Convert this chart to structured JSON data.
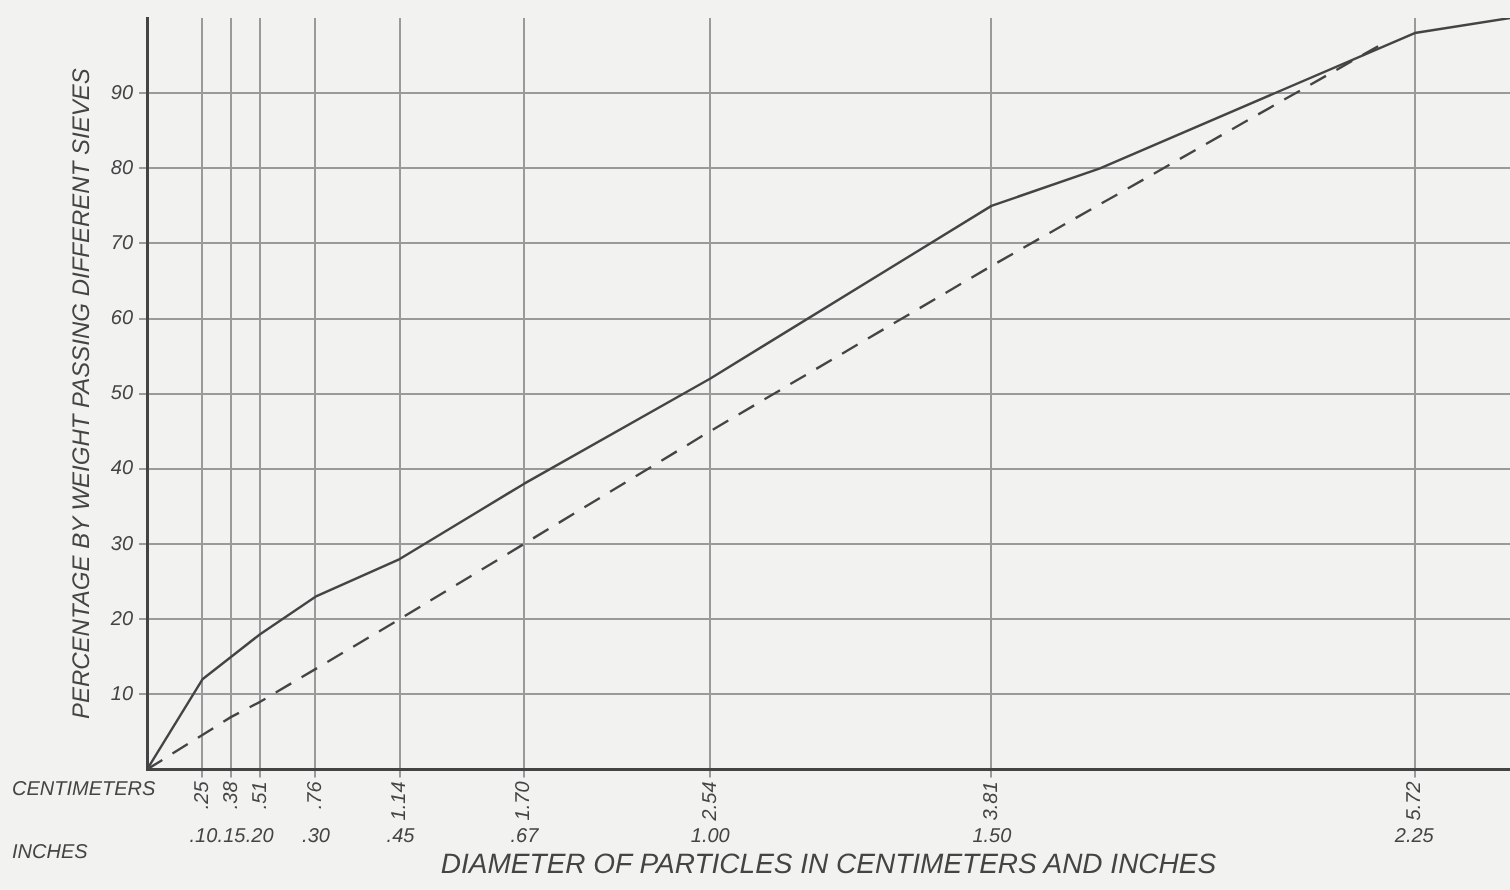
{
  "chart_data": {
    "type": "line",
    "ylabel": "PERCENTAGE BY WEIGHT PASSING DIFFERENT SIEVES",
    "xlabel": "DIAMETER OF PARTICLES IN CENTIMETERS AND INCHES",
    "annotations": [
      "CENTIMETERS",
      "INCHES"
    ],
    "series": [
      {
        "color": "#444444",
        "line_style": "solid",
        "x": [
          0,
          0.25,
          0.38,
          0.51,
          0.76,
          1.14,
          1.7,
          2.54,
          3.81,
          4.3,
          5.72,
          6.15
        ],
        "values": [
          0,
          12,
          15,
          18,
          23,
          28,
          38,
          52,
          75,
          80,
          98,
          100
        ]
      },
      {
        "color": "#444444",
        "line_style": "dashed",
        "x": [
          0,
          0.38,
          0.51,
          1.14,
          1.7,
          2.54,
          3.81,
          5.6
        ],
        "values": [
          0,
          7,
          9,
          20,
          30,
          45,
          67,
          97
        ]
      }
    ],
    "xlim": [
      0,
      6.15
    ],
    "xticks": [
      {
        "value": 0.25,
        "label": ".25"
      },
      {
        "value": 0.38,
        "label": ".38"
      },
      {
        "value": 0.51,
        "label": ".51"
      },
      {
        "value": 0.76,
        "label": ".76"
      },
      {
        "value": 1.14,
        "label": "1.14"
      },
      {
        "value": 1.7,
        "label": "1.70"
      },
      {
        "value": 2.54,
        "label": "2.54"
      },
      {
        "value": 3.81,
        "label": "3.81"
      },
      {
        "value": 5.72,
        "label": "5.72"
      }
    ],
    "x2lim": [
      0,
      2.42
    ],
    "x2ticks": [
      {
        "value": 0.1,
        "label": ".10"
      },
      {
        "value": 0.15,
        "label": ".15"
      },
      {
        "value": 0.2,
        "label": ".20"
      },
      {
        "value": 0.3,
        "label": ".30"
      },
      {
        "value": 0.45,
        "label": ".45"
      },
      {
        "value": 0.67,
        "label": ".67"
      },
      {
        "value": 1.0,
        "label": "1.00"
      },
      {
        "value": 1.5,
        "label": "1.50"
      },
      {
        "value": 2.25,
        "label": "2.25"
      }
    ],
    "ylim": [
      0,
      100
    ],
    "yticks": [
      10,
      20,
      30,
      40,
      50,
      60,
      70,
      80,
      90
    ],
    "grid": true,
    "legend": false,
    "marker": "none"
  }
}
